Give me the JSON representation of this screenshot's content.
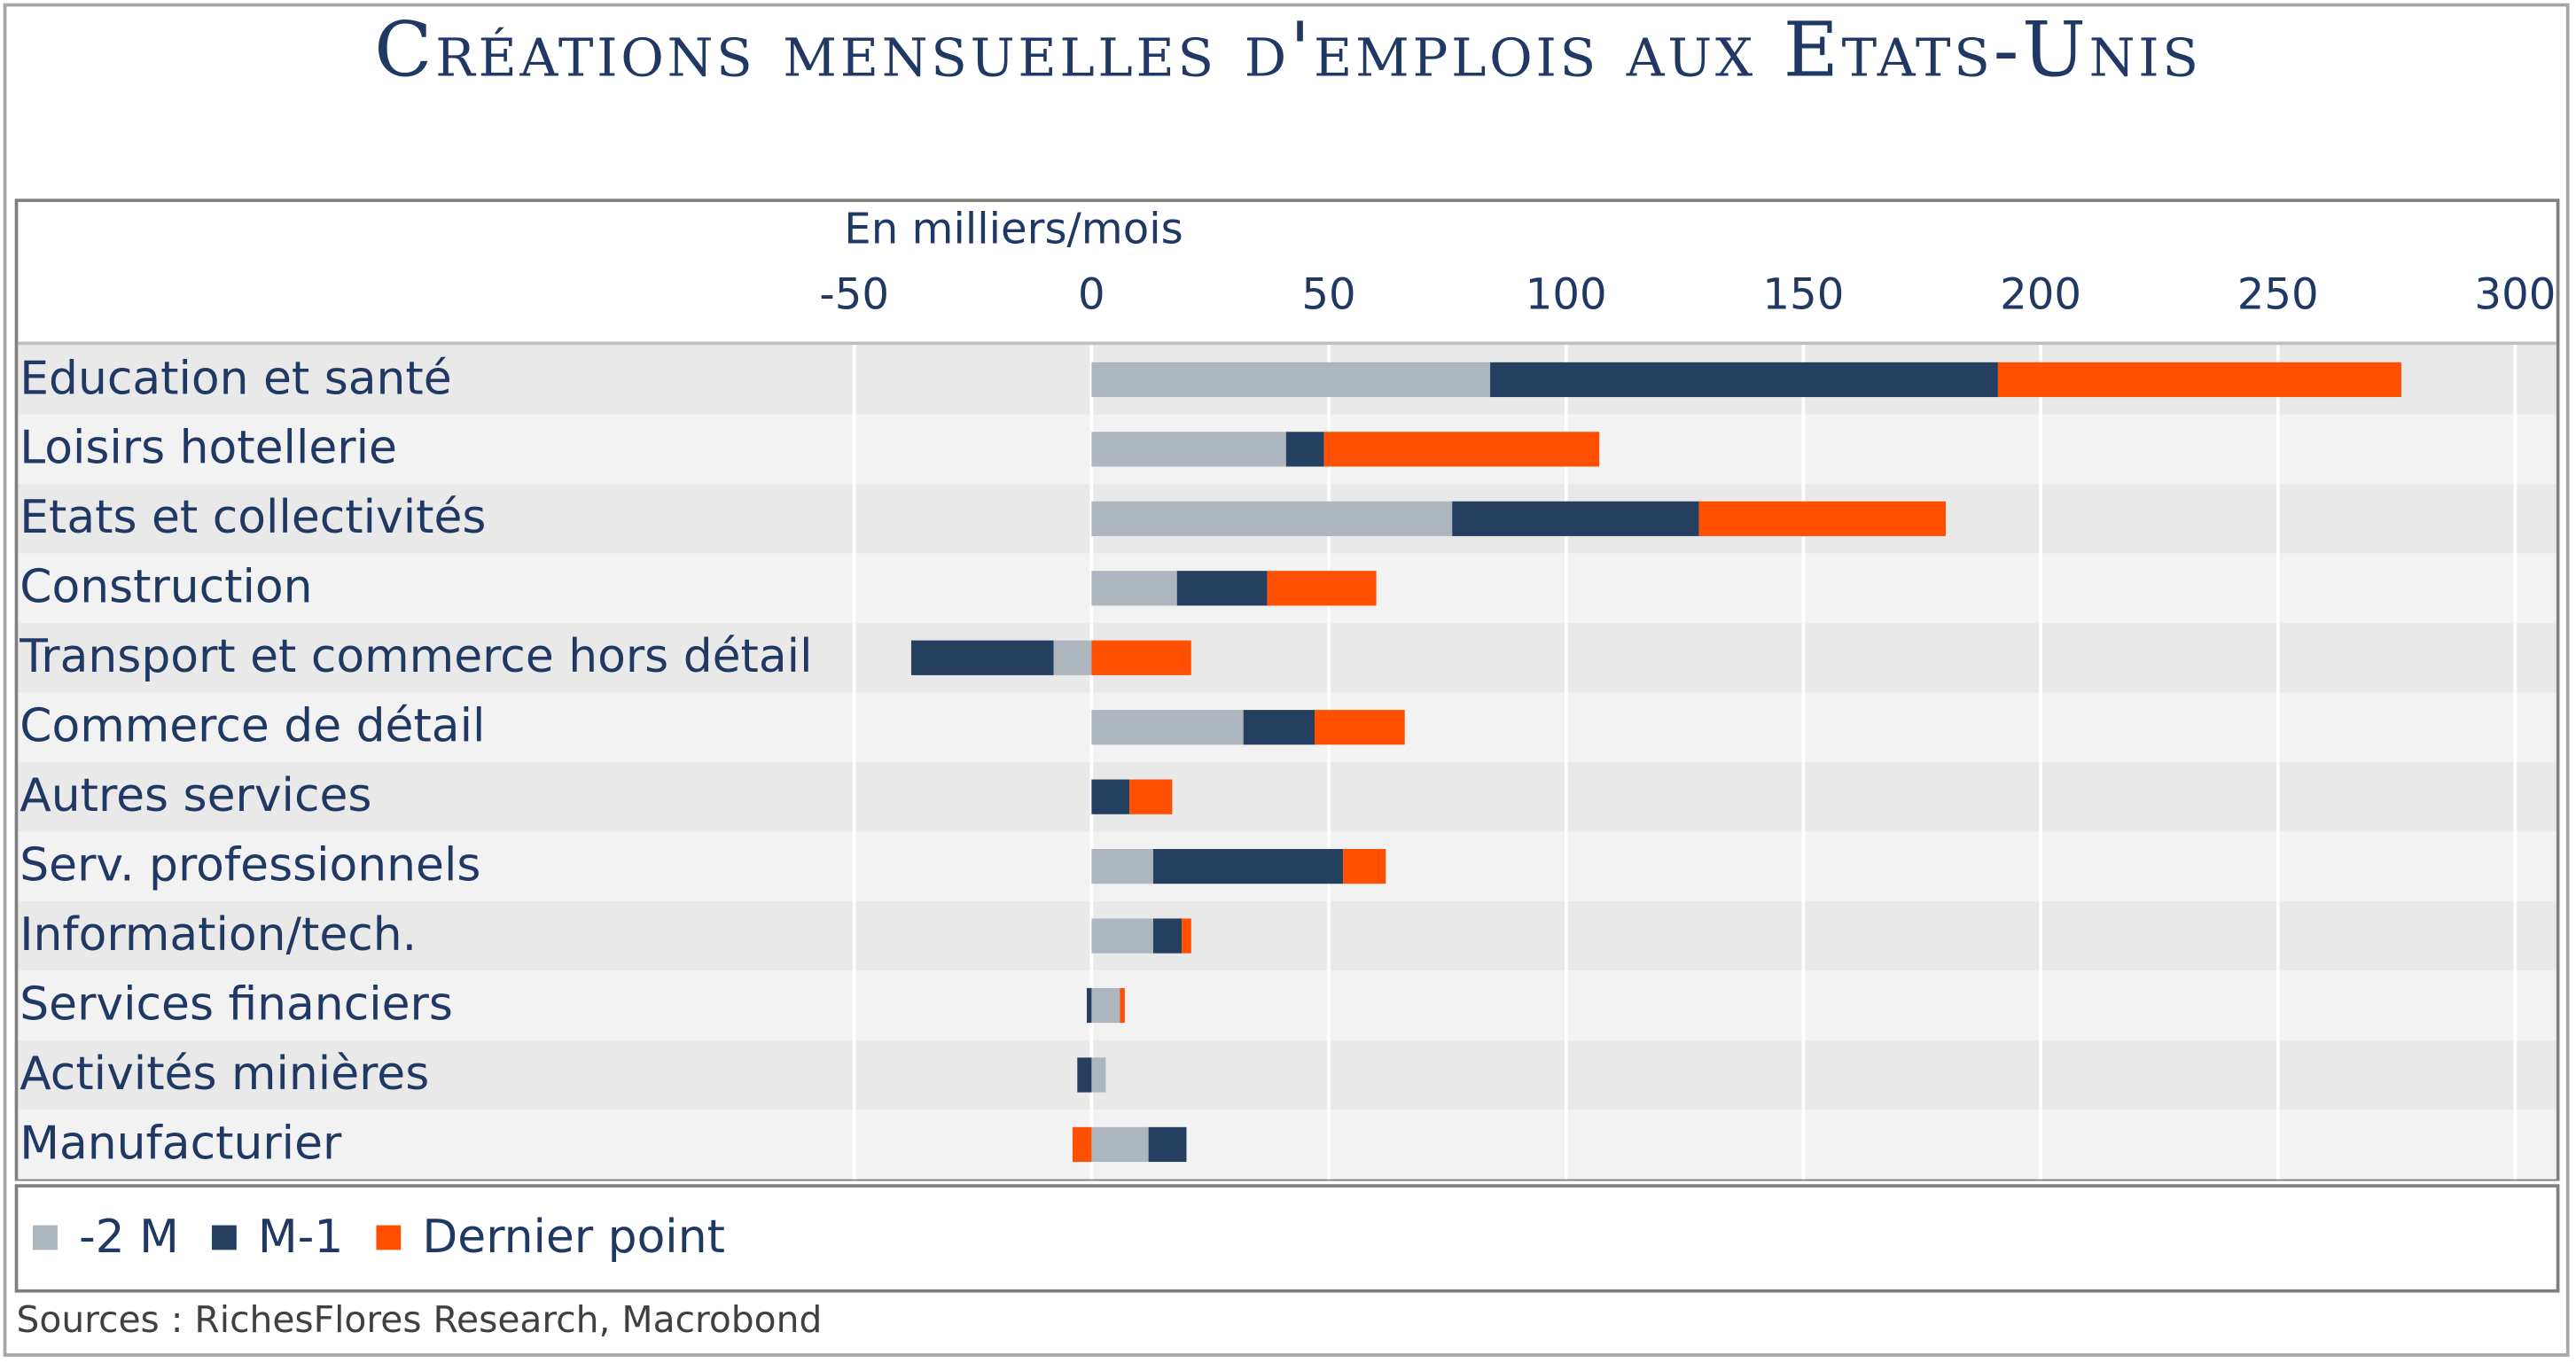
{
  "chart_data": {
    "type": "bar",
    "orientation": "horizontal",
    "stacked": true,
    "title": "Créations mensuelles d'emplois aux Etats-Unis",
    "x_axis_label": "En milliers/mois",
    "source": "Sources : RichesFlores Research, Macrobond",
    "categories": [
      "Education et santé",
      "Loisirs hotellerie",
      "Etats et collectivités",
      "Construction",
      "Transport et commerce hors détail",
      "Commerce de détail",
      "Autres services",
      "Serv. professionnels",
      "Information/tech.",
      "Services financiers",
      "Activités minières",
      "Manufacturier"
    ],
    "series": [
      {
        "name": "-2 M",
        "color": "#adb5bf",
        "values": [
          84,
          41,
          76,
          18,
          -8,
          32,
          0,
          13,
          13,
          6,
          3,
          12
        ]
      },
      {
        "name": "M-1",
        "color": "#243f60",
        "values": [
          107,
          8,
          52,
          19,
          -30,
          15,
          8,
          40,
          6,
          -1,
          -3,
          8
        ]
      },
      {
        "name": "Dernier point",
        "color": "#ff4f00",
        "values": [
          85,
          58,
          52,
          23,
          21,
          19,
          9,
          9,
          2,
          1,
          0,
          -4
        ]
      }
    ],
    "xlim": [
      -50,
      300
    ],
    "xticks": [
      -50,
      0,
      50,
      100,
      150,
      200,
      250,
      300
    ],
    "grid": true,
    "legend": "bottom"
  }
}
